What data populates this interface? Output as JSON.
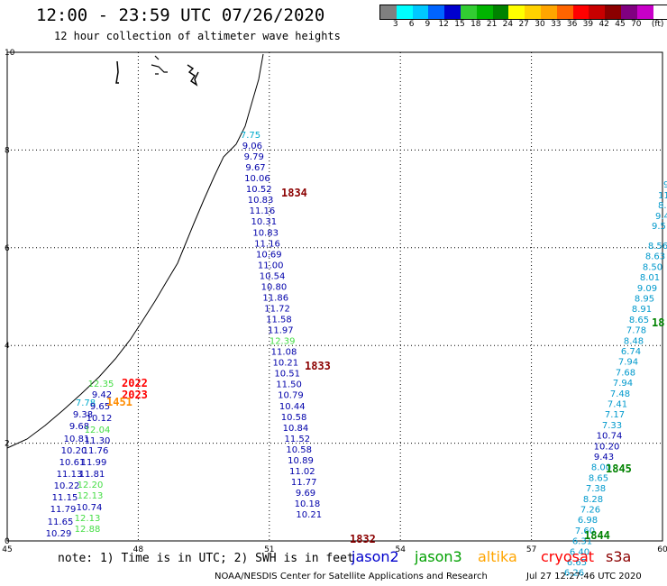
{
  "header": {
    "title": "12:00 - 23:59 UTC 07/26/2020",
    "subtitle": "12 hour collection of altimeter wave heights"
  },
  "color_scale": {
    "colors": [
      "#808080",
      "#00ffff",
      "#00c8ff",
      "#0064ff",
      "#0000cd",
      "#32cd32",
      "#00b400",
      "#008200",
      "#ffff00",
      "#ffd200",
      "#ffa500",
      "#ff6400",
      "#ff0000",
      "#c80000",
      "#8b0000",
      "#800080",
      "#c800c8",
      "#ffffff",
      "#000000"
    ],
    "labels": [
      "3",
      "6",
      "9",
      "12",
      "15",
      "18",
      "21",
      "24",
      "27",
      "30",
      "33",
      "36",
      "39",
      "42",
      "45",
      "70",
      "(ft)"
    ]
  },
  "axes": {
    "lon_ticks": [
      "45",
      "48",
      "51",
      "54",
      "57",
      "60"
    ],
    "lat_ticks": [
      "0",
      "2",
      "4",
      "6",
      "8",
      "10"
    ]
  },
  "tracks": [
    {
      "color": "#0000aa",
      "points": [
        {
          "v": "7.75",
          "c": "#00aacc"
        },
        {
          "v": "9.06"
        },
        {
          "v": "9.79"
        },
        {
          "v": "9.67"
        },
        {
          "v": "10.06"
        },
        {
          "v": "10.52"
        },
        {
          "v": "10.83"
        },
        {
          "v": "11.16"
        },
        {
          "v": "10.31"
        },
        {
          "v": "10.83"
        },
        {
          "v": "11.16"
        },
        {
          "v": "10.69"
        },
        {
          "v": "11.00"
        },
        {
          "v": "10.54"
        },
        {
          "v": "10.80"
        },
        {
          "v": "11.86"
        },
        {
          "v": "11.72"
        },
        {
          "v": "11.58"
        },
        {
          "v": "11.97"
        },
        {
          "v": "12.39",
          "c": "#44dd44"
        },
        {
          "v": "11.08"
        },
        {
          "v": "10.21"
        },
        {
          "v": "10.51"
        },
        {
          "v": "11.50"
        },
        {
          "v": "10.79"
        },
        {
          "v": "10.44"
        },
        {
          "v": "10.58"
        },
        {
          "v": "10.84"
        },
        {
          "v": "11.52"
        },
        {
          "v": "10.58"
        },
        {
          "v": "10.89"
        },
        {
          "v": "11.02"
        },
        {
          "v": "11.77"
        },
        {
          "v": "9.69"
        },
        {
          "v": "10.18"
        },
        {
          "v": "10.21"
        }
      ]
    },
    {
      "color": "#0099cc",
      "points": [
        {
          "v": "8.56"
        },
        {
          "v": "8.63"
        },
        {
          "v": "8.50"
        },
        {
          "v": "8.01"
        },
        {
          "v": "9.09"
        },
        {
          "v": "8.95"
        },
        {
          "v": "8.91"
        },
        {
          "v": "8.65"
        },
        {
          "v": "7.78"
        },
        {
          "v": "8.48"
        },
        {
          "v": "6.74"
        },
        {
          "v": "7.94"
        },
        {
          "v": "7.68"
        },
        {
          "v": "7.94"
        },
        {
          "v": "7.48"
        },
        {
          "v": "7.41"
        },
        {
          "v": "7.17"
        },
        {
          "v": "7.33"
        },
        {
          "v": "10.74",
          "c": "#0000aa"
        },
        {
          "v": "10.20",
          "c": "#0000aa"
        },
        {
          "v": "9.43",
          "c": "#0000aa"
        },
        {
          "v": "8.00"
        },
        {
          "v": "8.65"
        },
        {
          "v": "7.38"
        },
        {
          "v": "8.28"
        },
        {
          "v": "7.26"
        },
        {
          "v": "6.98"
        },
        {
          "v": "7.60"
        },
        {
          "v": "6.31"
        },
        {
          "v": "6.40"
        },
        {
          "v": "6.65"
        },
        {
          "v": "6.26"
        }
      ]
    },
    {
      "color": "#0000aa",
      "points": [
        {
          "v": "12.35",
          "c": "#44dd44"
        },
        {
          "v": "9.42"
        },
        {
          "v": "7.78",
          "c": "#00aacc"
        },
        {
          "v": "9.65"
        },
        {
          "v": "9.38"
        },
        {
          "v": "10.12"
        },
        {
          "v": "9.68"
        },
        {
          "v": "12.04",
          "c": "#44dd44"
        },
        {
          "v": "10.81"
        },
        {
          "v": "11.30"
        },
        {
          "v": "10.20"
        },
        {
          "v": "11.76"
        },
        {
          "v": "10.61"
        },
        {
          "v": "11.99"
        },
        {
          "v": "11.13"
        },
        {
          "v": "11.81"
        },
        {
          "v": "10.22"
        },
        {
          "v": "12.20",
          "c": "#44dd44"
        },
        {
          "v": "11.15"
        },
        {
          "v": "12.13",
          "c": "#44dd44"
        },
        {
          "v": "11.79"
        },
        {
          "v": "10.74"
        },
        {
          "v": "11.65"
        },
        {
          "v": "12.13",
          "c": "#44dd44"
        },
        {
          "v": "10.29"
        },
        {
          "v": "12.88",
          "c": "#44dd44"
        }
      ]
    }
  ],
  "time_labels": [
    {
      "t": "1834",
      "c": "#8b0000"
    },
    {
      "t": "1833",
      "c": "#8b0000"
    },
    {
      "t": "1832",
      "c": "#8b0000"
    },
    {
      "t": "2022",
      "c": "#ff0000"
    },
    {
      "t": "2023",
      "c": "#ff0000"
    },
    {
      "t": "1451",
      "c": "#ff8c00"
    },
    {
      "t": "1845",
      "c": "#008200"
    },
    {
      "t": "1844",
      "c": "#008200"
    },
    {
      "t": "18",
      "c": "#008200"
    }
  ],
  "partial_edge": [
    "9",
    "11",
    "8.",
    "9.4",
    "9.5"
  ],
  "footer": {
    "note": "note: 1) Time is in UTC; 2) SWH is in feet",
    "legend": [
      {
        "name": "jason2",
        "color": "#0000cc"
      },
      {
        "name": "jason3",
        "color": "#00a000"
      },
      {
        "name": "altika",
        "color": "#ffa500"
      },
      {
        "name": "cryosat",
        "color": "#ff0000"
      },
      {
        "name": "s3a",
        "color": "#8b0000"
      }
    ],
    "credit": "NOAA/NESDIS Center for Satellite Applications and Research",
    "timestamp": "Jul 27 12:27:46 UTC 2020"
  }
}
